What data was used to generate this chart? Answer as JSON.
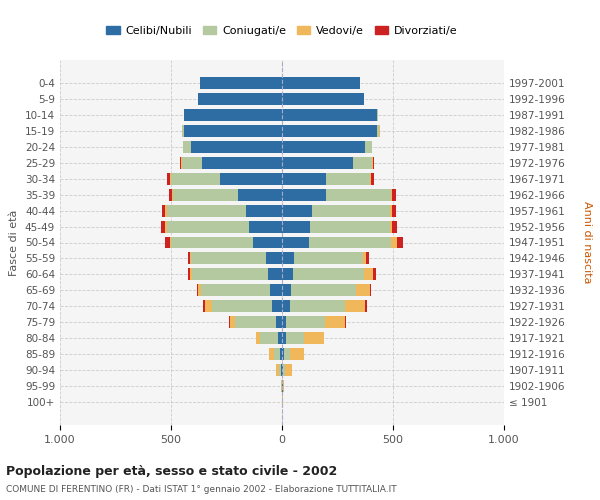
{
  "age_groups": [
    "100+",
    "95-99",
    "90-94",
    "85-89",
    "80-84",
    "75-79",
    "70-74",
    "65-69",
    "60-64",
    "55-59",
    "50-54",
    "45-49",
    "40-44",
    "35-39",
    "30-34",
    "25-29",
    "20-24",
    "15-19",
    "10-14",
    "5-9",
    "0-4"
  ],
  "birth_years": [
    "≤ 1901",
    "1902-1906",
    "1907-1911",
    "1912-1916",
    "1917-1921",
    "1922-1926",
    "1927-1931",
    "1932-1936",
    "1937-1941",
    "1942-1946",
    "1947-1951",
    "1952-1956",
    "1957-1961",
    "1962-1966",
    "1967-1971",
    "1972-1976",
    "1977-1981",
    "1982-1986",
    "1987-1991",
    "1992-1996",
    "1997-2001"
  ],
  "male": {
    "celibi": [
      2,
      2,
      5,
      8,
      18,
      25,
      45,
      55,
      65,
      70,
      130,
      150,
      160,
      200,
      280,
      360,
      410,
      440,
      440,
      380,
      370
    ],
    "coniugati": [
      0,
      2,
      10,
      30,
      80,
      185,
      270,
      310,
      340,
      340,
      370,
      370,
      360,
      290,
      220,
      90,
      35,
      10,
      2,
      0,
      0
    ],
    "vedovi": [
      0,
      2,
      10,
      20,
      20,
      25,
      30,
      15,
      10,
      5,
      5,
      5,
      5,
      5,
      5,
      5,
      2,
      2,
      0,
      0,
      0
    ],
    "divorziati": [
      0,
      0,
      0,
      0,
      0,
      5,
      10,
      5,
      10,
      10,
      20,
      20,
      15,
      15,
      15,
      5,
      0,
      0,
      0,
      0,
      0
    ]
  },
  "female": {
    "nubili": [
      2,
      3,
      5,
      8,
      18,
      20,
      35,
      40,
      50,
      55,
      120,
      125,
      135,
      200,
      200,
      320,
      375,
      430,
      430,
      370,
      350
    ],
    "coniugate": [
      0,
      2,
      8,
      30,
      80,
      175,
      250,
      295,
      320,
      310,
      370,
      360,
      350,
      290,
      195,
      85,
      30,
      8,
      2,
      0,
      0
    ],
    "vedove": [
      2,
      5,
      30,
      60,
      90,
      90,
      90,
      60,
      40,
      15,
      30,
      10,
      10,
      5,
      5,
      5,
      2,
      2,
      0,
      0,
      0
    ],
    "divorziate": [
      0,
      0,
      0,
      0,
      0,
      5,
      10,
      5,
      15,
      10,
      25,
      25,
      20,
      20,
      15,
      5,
      0,
      0,
      0,
      0,
      0
    ]
  },
  "colors": {
    "celibi": "#2e6da4",
    "coniugati": "#b5c9a0",
    "vedovi": "#f0b85a",
    "divorziati": "#cc2222"
  },
  "title": "Popolazione per età, sesso e stato civile - 2002",
  "subtitle": "COMUNE DI FERENTINO (FR) - Dati ISTAT 1° gennaio 2002 - Elaborazione TUTTITALIA.IT",
  "ylabel_left": "Fasce di età",
  "ylabel_right": "Anni di nascita",
  "xlim": 1000,
  "background_color": "#ffffff",
  "plot_bg_color": "#f5f5f5",
  "grid_color": "#cccccc"
}
